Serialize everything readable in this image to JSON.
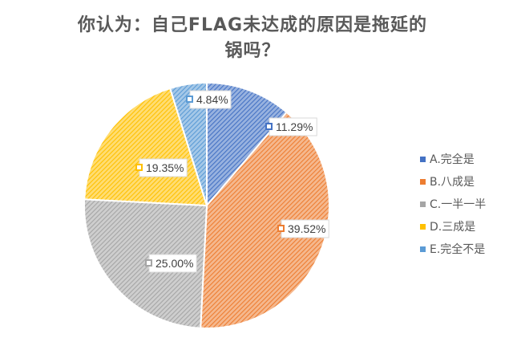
{
  "chart_data": {
    "type": "pie",
    "title_lines": [
      "你认为：自己FLAG未达成的原因是拖延的",
      "锅吗？"
    ],
    "categories": [
      "A.完全是",
      "B.八成是",
      "C.一半一半",
      "D.三成是",
      "E.完全不是"
    ],
    "values": [
      11.29,
      39.52,
      25.0,
      19.35,
      4.84
    ],
    "labels": [
      "11.29%",
      "39.52%",
      "25.00%",
      "19.35%",
      "4.84%"
    ],
    "colors": [
      "#4472c4",
      "#ed7d31",
      "#a5a5a5",
      "#ffc000",
      "#5b9bd5"
    ],
    "fill_pattern": "diagonal-hatch",
    "legend_position": "right",
    "start_angle_deg": 0,
    "direction": "clockwise"
  }
}
